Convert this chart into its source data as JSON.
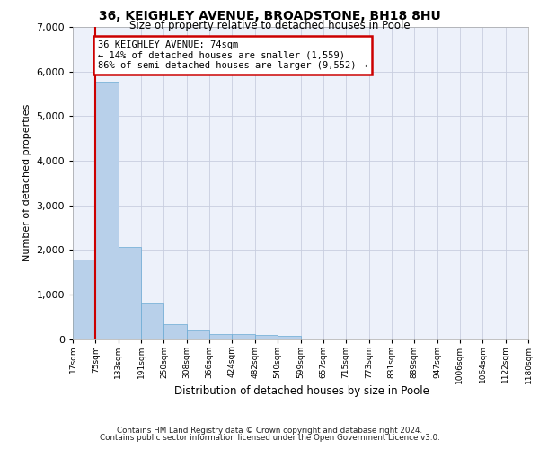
{
  "title_line1": "36, KEIGHLEY AVENUE, BROADSTONE, BH18 8HU",
  "title_line2": "Size of property relative to detached houses in Poole",
  "xlabel": "Distribution of detached houses by size in Poole",
  "ylabel": "Number of detached properties",
  "footnote1": "Contains HM Land Registry data © Crown copyright and database right 2024.",
  "footnote2": "Contains public sector information licensed under the Open Government Licence v3.0.",
  "bin_labels": [
    "17sqm",
    "75sqm",
    "133sqm",
    "191sqm",
    "250sqm",
    "308sqm",
    "366sqm",
    "424sqm",
    "482sqm",
    "540sqm",
    "599sqm",
    "657sqm",
    "715sqm",
    "773sqm",
    "831sqm",
    "889sqm",
    "947sqm",
    "1006sqm",
    "1064sqm",
    "1122sqm",
    "1180sqm"
  ],
  "bar_values": [
    1780,
    5780,
    2060,
    820,
    340,
    195,
    115,
    105,
    90,
    75,
    0,
    0,
    0,
    0,
    0,
    0,
    0,
    0,
    0,
    0
  ],
  "bar_color": "#b8d0ea",
  "bar_edge_color": "#6aaad4",
  "annotation_text_line1": "36 KEIGHLEY AVENUE: 74sqm",
  "annotation_text_line2": "← 14% of detached houses are smaller (1,559)",
  "annotation_text_line3": "86% of semi-detached houses are larger (9,552) →",
  "vline_color": "#cc0000",
  "annotation_box_edge": "#cc0000",
  "ylim": [
    0,
    7000
  ],
  "n_bins": 20,
  "background_color": "#edf1fa",
  "grid_color": "#c8cedf"
}
